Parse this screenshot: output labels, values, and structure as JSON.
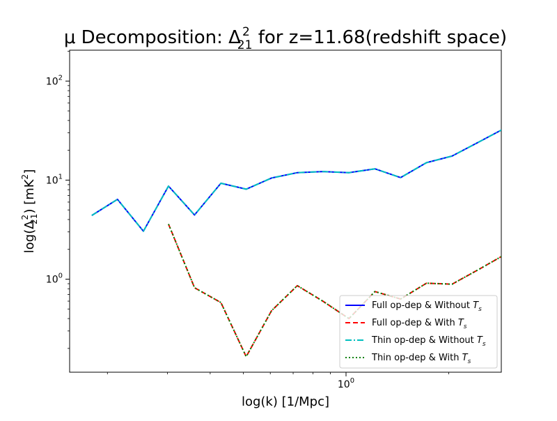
{
  "chart_data": {
    "type": "line",
    "title": {
      "prefix": "μ Decomposition: Δ",
      "sub": "21",
      "sup": "2",
      "suffix": " for z=11.68(redshift space)"
    },
    "xlabel": "log(k) [1/Mpc]",
    "ylabel": {
      "prefix": "log(Δ",
      "sub": "21",
      "sup": "2",
      "mid": ") [mK",
      "unitSup": "2",
      "suffix": "]"
    },
    "xscale": "log",
    "yscale": "log",
    "xlim": [
      0.155,
      2.85
    ],
    "ylim": [
      0.115,
      205
    ],
    "ticks": {
      "y": [
        {
          "value": 100,
          "base": "10",
          "exp": "2"
        },
        {
          "value": 10,
          "base": "10",
          "exp": "1"
        },
        {
          "value": 1,
          "base": "10",
          "exp": "0"
        }
      ],
      "x": [
        {
          "value": 1,
          "base": "10",
          "exp": "0"
        }
      ]
    },
    "grid": false,
    "legend_position": "lower-right",
    "series": [
      {
        "name": "Full op-dep & Without ",
        "nameVar": "T",
        "nameSub": "s",
        "color": "#0000ff",
        "style": "solid",
        "x": [
          0.18,
          0.214,
          0.255,
          0.302,
          0.36,
          0.43,
          0.51,
          0.605,
          0.72,
          0.855,
          1.02,
          1.215,
          1.445,
          1.72,
          2.045,
          2.435,
          2.9
        ],
        "y": [
          4.4,
          6.4,
          3.05,
          8.7,
          4.45,
          9.3,
          8.1,
          10.5,
          11.9,
          12.2,
          11.9,
          13.0,
          10.6,
          15.0,
          17.5,
          24.0,
          33.0
        ]
      },
      {
        "name": "Full op-dep & With ",
        "nameVar": "T",
        "nameSub": "s",
        "color": "#ff0000",
        "style": "dashed",
        "x": [
          0.302,
          0.36,
          0.43,
          0.51,
          0.605,
          0.72,
          0.855,
          1.02,
          1.215,
          1.445,
          1.72,
          2.045,
          2.435,
          2.9
        ],
        "y": [
          3.6,
          0.82,
          0.58,
          0.165,
          0.48,
          0.86,
          0.6,
          0.4,
          0.75,
          0.63,
          0.91,
          0.89,
          1.24,
          1.75
        ]
      },
      {
        "name": "Thin op-dep & Without ",
        "nameVar": "T",
        "nameSub": "s",
        "color": "#00bfbf",
        "style": "dashdot",
        "x": [
          0.18,
          0.214,
          0.255,
          0.302,
          0.36,
          0.43,
          0.51,
          0.605,
          0.72,
          0.855,
          1.02,
          1.215,
          1.445,
          1.72,
          2.045,
          2.435,
          2.9
        ],
        "y": [
          4.4,
          6.4,
          3.05,
          8.7,
          4.45,
          9.3,
          8.1,
          10.5,
          11.9,
          12.2,
          11.9,
          13.0,
          10.6,
          15.0,
          17.5,
          24.0,
          33.0
        ]
      },
      {
        "name": "Thin op-dep & With ",
        "nameVar": "T",
        "nameSub": "s",
        "color": "#008000",
        "style": "dotted",
        "x": [
          0.302,
          0.36,
          0.43,
          0.51,
          0.605,
          0.72,
          0.855,
          1.02,
          1.215,
          1.445,
          1.72,
          2.045,
          2.435,
          2.9
        ],
        "y": [
          3.6,
          0.82,
          0.58,
          0.165,
          0.48,
          0.86,
          0.6,
          0.4,
          0.75,
          0.63,
          0.91,
          0.89,
          1.24,
          1.75
        ]
      }
    ]
  }
}
